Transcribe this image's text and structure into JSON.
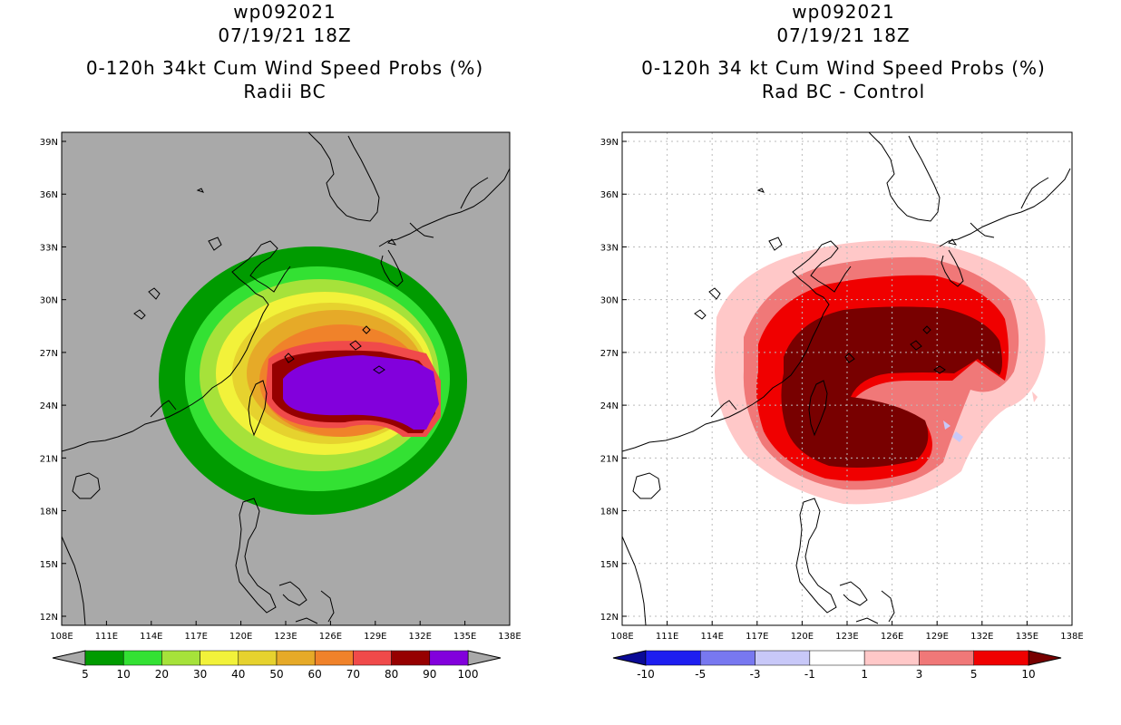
{
  "left": {
    "title_lines": [
      "wp092021",
      "07/19/21 18Z",
      "0-120h 34kt Cum Wind Speed Probs (%)",
      "Radii BC"
    ],
    "colorbar": {
      "colors": [
        "#009b00",
        "#33e133",
        "#a6e23a",
        "#f2f23a",
        "#e6d22e",
        "#e6aa28",
        "#f0822a",
        "#f04a4a",
        "#960000",
        "#8200dc"
      ],
      "labels": [
        "5",
        "10",
        "20",
        "30",
        "40",
        "50",
        "60",
        "70",
        "80",
        "90",
        "100"
      ]
    }
  },
  "right": {
    "title_lines": [
      "wp092021",
      "07/19/21 18Z",
      "0-120h 34 kt Cum Wind Speed Probs (%)",
      "Rad BC - Control"
    ],
    "colorbar": {
      "colors": [
        "#0a0a96",
        "#1e1ef0",
        "#7878f0",
        "#c8c8f8",
        "#ffffff",
        "#ffc8c8",
        "#f07878",
        "#f00000",
        "#780000"
      ],
      "labels": [
        "-10",
        "-5",
        "-3",
        "-1",
        "1",
        "3",
        "5",
        "10"
      ]
    }
  },
  "axes": {
    "lat_labels": [
      "39N",
      "36N",
      "33N",
      "30N",
      "27N",
      "24N",
      "21N",
      "18N",
      "15N",
      "12N"
    ],
    "lon_labels": [
      "108E",
      "111E",
      "114E",
      "117E",
      "120E",
      "123E",
      "126E",
      "129E",
      "132E",
      "135E",
      "138E"
    ]
  }
}
